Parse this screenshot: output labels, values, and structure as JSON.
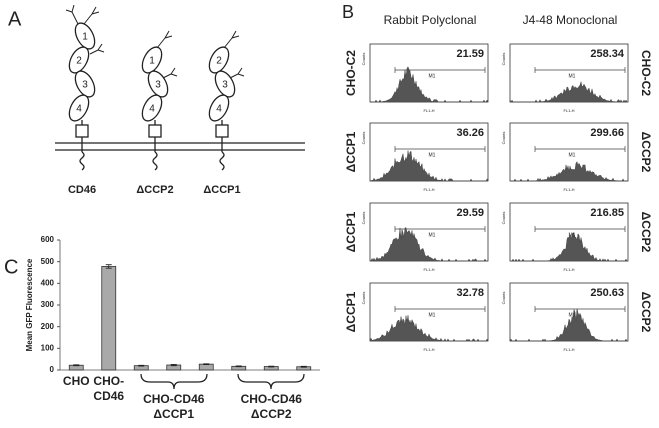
{
  "panel_labels": [
    "A",
    "B",
    "C"
  ],
  "diagram": {
    "constructs": [
      {
        "label": "CD46",
        "domains": [
          "1",
          "2",
          "3",
          "4"
        ]
      },
      {
        "label": "ΔCCP2",
        "domains": [
          "1",
          "3",
          "4"
        ]
      },
      {
        "label": "ΔCCP1",
        "domains": [
          "2",
          "3",
          "4"
        ]
      }
    ]
  },
  "flow": {
    "columns": [
      "Rabbit Polyclonal",
      "J4-48 Monoclonal"
    ],
    "row_labels_left": [
      "CHO-C2",
      "ΔCCP1",
      "ΔCCP1",
      "ΔCCP1"
    ],
    "row_labels_right": [
      "CHO-C2",
      "ΔCCP2",
      "ΔCCP2",
      "ΔCCP2"
    ],
    "values": [
      [
        "21.59",
        "258.34"
      ],
      [
        "36.26",
        "299.66"
      ],
      [
        "29.59",
        "216.85"
      ],
      [
        "32.78",
        "250.63"
      ]
    ],
    "marker": "M1",
    "x_axis_label": "FL1-H",
    "y_axis_label": "Counts"
  },
  "chart_data": {
    "type": "bar",
    "y_label": "Mean GFP Fluorescence",
    "categories": [
      "CHO",
      "CHO-CD46",
      null,
      "CHO-CD46 ΔCCP1",
      null,
      null,
      "CHO-CD46 ΔCCP2",
      null
    ],
    "values": [
      22,
      478,
      20,
      23,
      27,
      17,
      16,
      15
    ],
    "errors": [
      2,
      8,
      2,
      3,
      2,
      2,
      2,
      2
    ],
    "color": "#a9a9a9",
    "ylim": [
      0,
      600
    ],
    "yticks": [
      0,
      100,
      200,
      300,
      400,
      500,
      600
    ]
  }
}
